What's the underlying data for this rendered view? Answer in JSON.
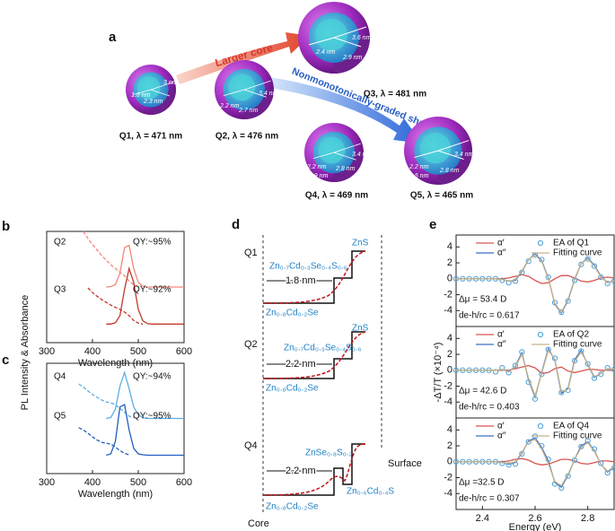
{
  "panel_labels": [
    "a",
    "b",
    "c",
    "d",
    "e"
  ],
  "panel_a": {
    "arrows": [
      "Larger core",
      "Nonmonotonically-graded shell"
    ],
    "nodes": [
      {
        "label": "Q1, λ = 471 nm",
        "dims": [
          "1.8 nm",
          "2.3 nm",
          "3 nm"
        ]
      },
      {
        "label": "Q2, λ = 476 nm",
        "dims": [
          "2.2 nm",
          "2.7 nm",
          "3.4 nm"
        ]
      },
      {
        "label": "Q3, λ = 481 nm",
        "dims": [
          "2.4 nm",
          "2.9 nm",
          "3.6 nm"
        ]
      },
      {
        "label": "Q4, λ = 469 nm",
        "dims": [
          "2.2 nm",
          "2.9 nm",
          "2.8 nm",
          "3.4 nm"
        ]
      },
      {
        "label": "Q5, λ = 465 nm",
        "dims": [
          "2.2 nm",
          "2.5 nm",
          "2.8 nm",
          "3.4 nm"
        ]
      }
    ]
  },
  "panel_d": {
    "core": "Core",
    "surface": "Surface",
    "rows": [
      {
        "label": "Q1",
        "shell": "ZnS",
        "middle": "Zn₀.₇Cd₀.₃Se₀.₄S₀.₆",
        "width": "1.8 nm",
        "inner": "Zn₀.₈Cd₀.₂Se"
      },
      {
        "label": "Q2",
        "shell": "ZnS",
        "middle": "Zn₀.₇Cd₀.₃Se₀.₄S₀.₆",
        "width": "2.2 nm",
        "inner": "Zn₀.₈Cd₀.₂Se"
      },
      {
        "label": "Q4",
        "shell": "ZnSe₀.₈S₀.₂",
        "middle": "Zn₀.₆Cd₀.₄S",
        "width": "2.2 nm",
        "inner": "Zn₀.₈Cd₀.₂Se"
      }
    ]
  },
  "chart_data": [
    {
      "type": "line",
      "xlabel": "Wavelength (nm)",
      "ylabel": "PL Intensity & Absorbance",
      "annotations": [
        "Q2",
        "QY:~95%",
        "Q3",
        "QY:~92%"
      ],
      "x": [
        370,
        380,
        390,
        400,
        410,
        420,
        430,
        440,
        450,
        460,
        470,
        480,
        490,
        500,
        510,
        520,
        530,
        540,
        550,
        560,
        570,
        580,
        590,
        600
      ],
      "xlim": [
        300,
        600
      ],
      "xticks": [
        300,
        400,
        500,
        600
      ],
      "ylim": [
        0,
        2.4
      ],
      "series": [
        {
          "color": "#f4877a",
          "style": "solid",
          "values": [
            null,
            null,
            null,
            null,
            null,
            null,
            1.2,
            1.21,
            1.25,
            1.5,
            2.05,
            2.1,
            1.6,
            1.3,
            1.22,
            1.2,
            1.2,
            1.2,
            1.2,
            1.2,
            1.2,
            1.2,
            1.2,
            1.2
          ]
        },
        {
          "color": "#f4877a",
          "style": "dash",
          "values": [
            null,
            2.4,
            2.25,
            2.12,
            2.0,
            1.88,
            1.78,
            1.68,
            1.6,
            1.52,
            1.44,
            1.33,
            1.25,
            1.21,
            null,
            null,
            null,
            null,
            null,
            null,
            null,
            null,
            null,
            null
          ]
        },
        {
          "color": "#c0392b",
          "style": "solid",
          "values": [
            null,
            null,
            null,
            null,
            null,
            null,
            0.4,
            0.4,
            0.43,
            0.58,
            1.15,
            1.6,
            1.3,
            0.72,
            0.47,
            0.41,
            0.4,
            0.4,
            0.4,
            0.4,
            0.4,
            0.4,
            0.4,
            0.4
          ]
        },
        {
          "color": "#c0392b",
          "style": "dash",
          "values": [
            null,
            null,
            1.18,
            1.08,
            1.0,
            0.93,
            0.87,
            0.81,
            0.76,
            0.72,
            0.66,
            0.58,
            0.48,
            0.42,
            0.4,
            null,
            null,
            null,
            null,
            null,
            null,
            null,
            null,
            null
          ]
        }
      ]
    },
    {
      "type": "line",
      "xlabel": "Wavelength (nm)",
      "annotations": [
        "Q4",
        "QY:~94%",
        "Q5",
        "QY:~95%"
      ],
      "x": [
        370,
        380,
        390,
        400,
        410,
        420,
        430,
        440,
        450,
        460,
        470,
        480,
        490,
        500,
        510,
        520,
        530,
        540,
        550,
        560,
        570,
        580,
        590,
        600
      ],
      "xlim": [
        300,
        600
      ],
      "xticks": [
        300,
        400,
        500,
        600
      ],
      "ylim": [
        0,
        2.4
      ],
      "series": [
        {
          "color": "#5aaee8",
          "style": "solid",
          "values": [
            null,
            null,
            null,
            null,
            null,
            null,
            1.2,
            1.22,
            1.4,
            1.9,
            2.2,
            1.85,
            1.45,
            1.28,
            1.22,
            1.2,
            1.2,
            1.2,
            1.2,
            1.2,
            1.2,
            1.2,
            1.2,
            1.2
          ]
        },
        {
          "color": "#5aaee8",
          "style": "dash",
          "values": [
            1.95,
            1.88,
            1.8,
            1.72,
            1.66,
            1.6,
            1.56,
            1.54,
            1.5,
            1.42,
            1.33,
            1.25,
            1.21,
            null,
            null,
            null,
            null,
            null,
            null,
            null,
            null,
            null,
            null,
            null
          ]
        },
        {
          "color": "#1f5fbf",
          "style": "solid",
          "values": [
            null,
            null,
            null,
            null,
            null,
            null,
            0.4,
            0.43,
            0.7,
            1.45,
            1.5,
            0.95,
            0.55,
            0.43,
            0.41,
            0.4,
            0.4,
            0.4,
            0.4,
            0.4,
            0.4,
            0.4,
            0.4,
            0.4
          ]
        },
        {
          "color": "#1f5fbf",
          "style": "dash",
          "values": [
            1.0,
            0.95,
            0.88,
            0.8,
            0.73,
            0.68,
            0.66,
            0.64,
            0.58,
            0.5,
            0.44,
            0.41,
            null,
            null,
            null,
            null,
            null,
            null,
            null,
            null,
            null,
            null,
            null,
            null
          ]
        }
      ]
    },
    {
      "type": "line",
      "ylabel": "-ΔT/T (×10⁻⁴)",
      "annotations": [
        "Δμ = 53.4 D",
        "de-h/rc = 0.617"
      ],
      "x": [
        2.3,
        2.325,
        2.35,
        2.375,
        2.4,
        2.425,
        2.45,
        2.475,
        2.5,
        2.525,
        2.55,
        2.575,
        2.6,
        2.625,
        2.65,
        2.675,
        2.7,
        2.725,
        2.75,
        2.775,
        2.8,
        2.825,
        2.85,
        2.875,
        2.9
      ],
      "xlim": [
        2.3,
        2.9
      ],
      "ylim": [
        -6,
        5.5
      ],
      "yticks": [
        -4,
        -2,
        0,
        2,
        4
      ],
      "series": [
        {
          "name": "α′",
          "color": "#d9534f",
          "style": "solid",
          "values": [
            0,
            0,
            0,
            0,
            0,
            0,
            0,
            0,
            0.1,
            0.3,
            0.5,
            0.3,
            -0.2,
            -0.6,
            -0.5,
            0,
            0.4,
            0.4,
            0.1,
            -0.3,
            -0.4,
            -0.2,
            0.1,
            0.2,
            0.1
          ]
        },
        {
          "name": "α″",
          "color": "#3a6fc4",
          "style": "solid",
          "values": [
            0,
            0,
            0,
            0,
            0,
            0,
            0,
            -0.1,
            -0.3,
            -0.2,
            0.9,
            2.4,
            3.1,
            2.3,
            0.1,
            -3.2,
            -4.3,
            -2.7,
            -0.1,
            1.9,
            2.6,
            1.7,
            0.3,
            -0.5,
            -0.2
          ]
        },
        {
          "name": "EA of Q1",
          "color": "#4a9fd8",
          "marker": "circle",
          "values": [
            0,
            0,
            0,
            0,
            0,
            0,
            0,
            -0.2,
            -0.5,
            -0.3,
            0.8,
            2.2,
            3.0,
            2.4,
            0.2,
            -3.0,
            -4.2,
            -2.8,
            -0.2,
            1.8,
            2.5,
            1.6,
            0.2,
            -0.6,
            -0.3
          ]
        },
        {
          "name": "Fitting curve",
          "color": "#c8b48a",
          "style": "solid",
          "values": [
            0,
            0,
            0,
            0,
            0,
            0,
            0,
            -0.1,
            -0.3,
            -0.1,
            1.0,
            2.4,
            3.0,
            2.2,
            0,
            -3.1,
            -4.2,
            -2.6,
            0,
            1.9,
            2.5,
            1.6,
            0.2,
            -0.5,
            -0.2
          ]
        }
      ]
    },
    {
      "type": "line",
      "annotations": [
        "Δμ = 42.6 D",
        "de-h/rc = 0.403"
      ],
      "x": [
        2.3,
        2.325,
        2.35,
        2.375,
        2.4,
        2.425,
        2.45,
        2.475,
        2.5,
        2.525,
        2.55,
        2.575,
        2.6,
        2.625,
        2.65,
        2.675,
        2.7,
        2.725,
        2.75,
        2.775,
        2.8,
        2.825,
        2.85,
        2.875,
        2.9
      ],
      "xlim": [
        2.3,
        2.9
      ],
      "ylim": [
        -6,
        5.5
      ],
      "yticks": [
        -4,
        -2,
        0,
        2,
        4
      ],
      "series": [
        {
          "name": "α′",
          "color": "#d9534f",
          "style": "solid",
          "values": [
            0,
            0,
            0,
            0,
            0,
            0,
            0,
            0,
            0,
            0.2,
            0.4,
            0.6,
            0.3,
            -0.4,
            -0.3,
            0.2,
            0.4,
            -0.1,
            -0.3,
            -0.1,
            0.1,
            0.1,
            0,
            0,
            0
          ]
        },
        {
          "name": "α″",
          "color": "#3a6fc4",
          "style": "solid",
          "values": [
            0,
            0,
            0,
            0,
            0,
            0,
            0,
            0.1,
            -0.2,
            0.5,
            2.2,
            -1.2,
            -3.4,
            -0.3,
            2.7,
            1.3,
            -2.9,
            -2.3,
            1.3,
            2.5,
            0.7,
            -0.9,
            -0.4,
            0.2,
            0.1
          ]
        },
        {
          "name": "EA of Q2",
          "color": "#4a9fd8",
          "marker": "circle",
          "values": [
            0,
            0,
            0,
            0,
            0,
            0,
            -0.2,
            0.3,
            -0.3,
            0.6,
            2.3,
            -1.5,
            -3.6,
            -0.5,
            2.6,
            1.5,
            -2.8,
            -2.5,
            1.2,
            2.4,
            0.8,
            -1.0,
            -0.5,
            0.3,
            0.1
          ]
        },
        {
          "name": "Fitting curve",
          "color": "#c8b48a",
          "style": "solid",
          "values": [
            0,
            0,
            0,
            0,
            0,
            0,
            0,
            0.1,
            -0.2,
            0.4,
            2.0,
            -1.0,
            -3.2,
            -0.4,
            2.5,
            1.4,
            -2.7,
            -2.4,
            1.1,
            2.3,
            0.8,
            -0.8,
            -0.4,
            0.2,
            0.1
          ]
        }
      ]
    },
    {
      "type": "line",
      "xlabel": "Energy (eV)",
      "annotations": [
        "Δμ =32.5 D",
        "de-h/rc = 0.307"
      ],
      "x": [
        2.3,
        2.325,
        2.35,
        2.375,
        2.4,
        2.425,
        2.45,
        2.475,
        2.5,
        2.525,
        2.55,
        2.575,
        2.6,
        2.625,
        2.65,
        2.675,
        2.7,
        2.725,
        2.75,
        2.775,
        2.8,
        2.825,
        2.85,
        2.875,
        2.9
      ],
      "xlim": [
        2.3,
        2.9
      ],
      "xticks": [
        2.4,
        2.6,
        2.8
      ],
      "ylim": [
        -6,
        5.5
      ],
      "yticks": [
        -4,
        -2,
        0,
        2,
        4
      ],
      "series": [
        {
          "name": "α′",
          "color": "#d9534f",
          "style": "solid",
          "values": [
            0,
            0,
            0,
            0,
            0,
            0,
            0,
            0,
            0.1,
            0.3,
            0.4,
            0.2,
            -0.2,
            -0.4,
            -0.3,
            0,
            0.3,
            0.3,
            0.1,
            -0.2,
            -0.3,
            -0.1,
            0.1,
            0.1,
            0
          ]
        },
        {
          "name": "α″",
          "color": "#3a6fc4",
          "style": "solid",
          "values": [
            0,
            0,
            0,
            0,
            0,
            0,
            0,
            -0.1,
            -0.3,
            -0.1,
            1.1,
            2.6,
            3.0,
            1.8,
            0.1,
            -2.6,
            -3.2,
            -1.7,
            0.3,
            2.0,
            2.5,
            1.4,
            -0.3,
            -1.3,
            -0.7
          ]
        },
        {
          "name": "EA of Q4",
          "color": "#4a9fd8",
          "marker": "circle",
          "values": [
            0,
            0,
            0,
            0,
            0,
            0,
            0,
            -0.2,
            -0.4,
            -0.3,
            1.0,
            2.5,
            3.2,
            2.0,
            0.3,
            -2.8,
            -3.3,
            -1.8,
            0.2,
            1.9,
            2.6,
            1.6,
            -0.2,
            -1.4,
            -0.8
          ]
        },
        {
          "name": "Fitting curve",
          "color": "#c8b48a",
          "style": "solid",
          "values": [
            0,
            0,
            0,
            0,
            0,
            0,
            0,
            -0.1,
            -0.2,
            0,
            1.2,
            2.5,
            2.8,
            1.6,
            -0.2,
            -2.5,
            -3.0,
            -1.6,
            0.3,
            1.8,
            2.4,
            1.3,
            -0.3,
            -1.2,
            -0.6
          ]
        }
      ]
    }
  ]
}
